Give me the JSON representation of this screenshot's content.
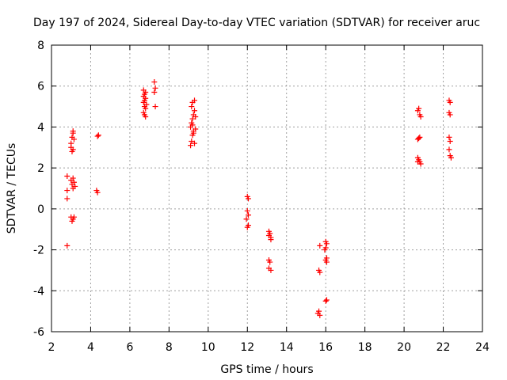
{
  "chart_data": {
    "type": "scatter",
    "title": "Day 197 of 2024, Sidereal Day-to-day VTEC variation (SDTVAR) for receiver aruc",
    "xlabel": "GPS time / hours",
    "ylabel": "SDTVAR / TECUs",
    "xlim": [
      2,
      24
    ],
    "ylim": [
      -6,
      8
    ],
    "xticks": [
      2,
      4,
      6,
      8,
      10,
      12,
      14,
      16,
      18,
      20,
      22,
      24
    ],
    "yticks": [
      -6,
      -4,
      -2,
      0,
      2,
      4,
      6,
      8
    ],
    "grid": true,
    "marker": "plus",
    "color": "#ff0000",
    "series": [
      {
        "name": "SDTVAR",
        "points": [
          [
            2.8,
            1.6
          ],
          [
            2.8,
            0.9
          ],
          [
            2.8,
            0.5
          ],
          [
            2.8,
            -1.8
          ],
          [
            3.0,
            3.2
          ],
          [
            3.05,
            3.5
          ],
          [
            3.1,
            3.7
          ],
          [
            3.1,
            3.8
          ],
          [
            3.0,
            3.0
          ],
          [
            3.05,
            2.8
          ],
          [
            3.1,
            2.9
          ],
          [
            3.15,
            3.4
          ],
          [
            3.0,
            1.4
          ],
          [
            3.05,
            1.2
          ],
          [
            3.1,
            1.0
          ],
          [
            3.15,
            1.3
          ],
          [
            3.2,
            1.1
          ],
          [
            3.1,
            1.5
          ],
          [
            3.0,
            -0.4
          ],
          [
            3.05,
            -0.6
          ],
          [
            3.1,
            -0.5
          ],
          [
            3.15,
            -0.4
          ],
          [
            4.35,
            3.55
          ],
          [
            4.4,
            3.6
          ],
          [
            4.3,
            0.9
          ],
          [
            4.35,
            0.8
          ],
          [
            6.7,
            5.8
          ],
          [
            6.75,
            5.6
          ],
          [
            6.8,
            5.4
          ],
          [
            6.7,
            5.2
          ],
          [
            6.75,
            5.0
          ],
          [
            6.8,
            4.9
          ],
          [
            6.7,
            4.7
          ],
          [
            6.75,
            4.6
          ],
          [
            6.8,
            4.5
          ],
          [
            6.7,
            5.5
          ],
          [
            6.75,
            5.3
          ],
          [
            6.8,
            5.7
          ],
          [
            6.85,
            5.1
          ],
          [
            7.25,
            6.2
          ],
          [
            7.3,
            5.9
          ],
          [
            7.25,
            5.7
          ],
          [
            7.3,
            5.0
          ],
          [
            9.1,
            3.1
          ],
          [
            9.15,
            3.3
          ],
          [
            9.2,
            3.6
          ],
          [
            9.25,
            3.8
          ],
          [
            9.1,
            4.0
          ],
          [
            9.15,
            4.2
          ],
          [
            9.2,
            4.4
          ],
          [
            9.25,
            4.6
          ],
          [
            9.3,
            4.8
          ],
          [
            9.15,
            5.0
          ],
          [
            9.2,
            5.2
          ],
          [
            9.3,
            5.3
          ],
          [
            9.35,
            3.9
          ],
          [
            9.3,
            3.2
          ],
          [
            9.2,
            4.1
          ],
          [
            9.35,
            4.5
          ],
          [
            9.25,
            3.7
          ],
          [
            12.0,
            0.6
          ],
          [
            12.05,
            0.5
          ],
          [
            12.0,
            -0.1
          ],
          [
            12.05,
            -0.3
          ],
          [
            11.95,
            -0.5
          ],
          [
            12.0,
            -0.9
          ],
          [
            12.05,
            -0.8
          ],
          [
            13.1,
            -1.1
          ],
          [
            13.15,
            -1.2
          ],
          [
            13.2,
            -1.4
          ],
          [
            13.1,
            -1.3
          ],
          [
            13.2,
            -1.5
          ],
          [
            13.1,
            -2.5
          ],
          [
            13.15,
            -2.6
          ],
          [
            13.1,
            -2.9
          ],
          [
            13.2,
            -3.0
          ],
          [
            15.7,
            -1.8
          ],
          [
            15.65,
            -3.0
          ],
          [
            15.7,
            -3.1
          ],
          [
            15.6,
            -5.1
          ],
          [
            15.7,
            -5.2
          ],
          [
            15.65,
            -5.0
          ],
          [
            16.0,
            -1.6
          ],
          [
            16.05,
            -1.7
          ],
          [
            16.0,
            -1.9
          ],
          [
            15.95,
            -2.0
          ],
          [
            16.05,
            -2.4
          ],
          [
            16.0,
            -2.5
          ],
          [
            16.05,
            -2.6
          ],
          [
            16.0,
            -4.5
          ],
          [
            16.05,
            -4.45
          ],
          [
            20.7,
            4.8
          ],
          [
            20.75,
            4.9
          ],
          [
            20.8,
            4.6
          ],
          [
            20.85,
            4.5
          ],
          [
            20.7,
            3.4
          ],
          [
            20.8,
            3.5
          ],
          [
            20.75,
            3.45
          ],
          [
            20.7,
            2.5
          ],
          [
            20.75,
            2.4
          ],
          [
            20.8,
            2.3
          ],
          [
            20.85,
            2.2
          ],
          [
            20.7,
            2.3
          ],
          [
            22.3,
            5.3
          ],
          [
            22.35,
            5.2
          ],
          [
            22.3,
            4.7
          ],
          [
            22.35,
            4.6
          ],
          [
            22.3,
            3.5
          ],
          [
            22.35,
            3.3
          ],
          [
            22.3,
            2.9
          ],
          [
            22.35,
            2.6
          ],
          [
            22.4,
            2.5
          ]
        ]
      }
    ]
  }
}
